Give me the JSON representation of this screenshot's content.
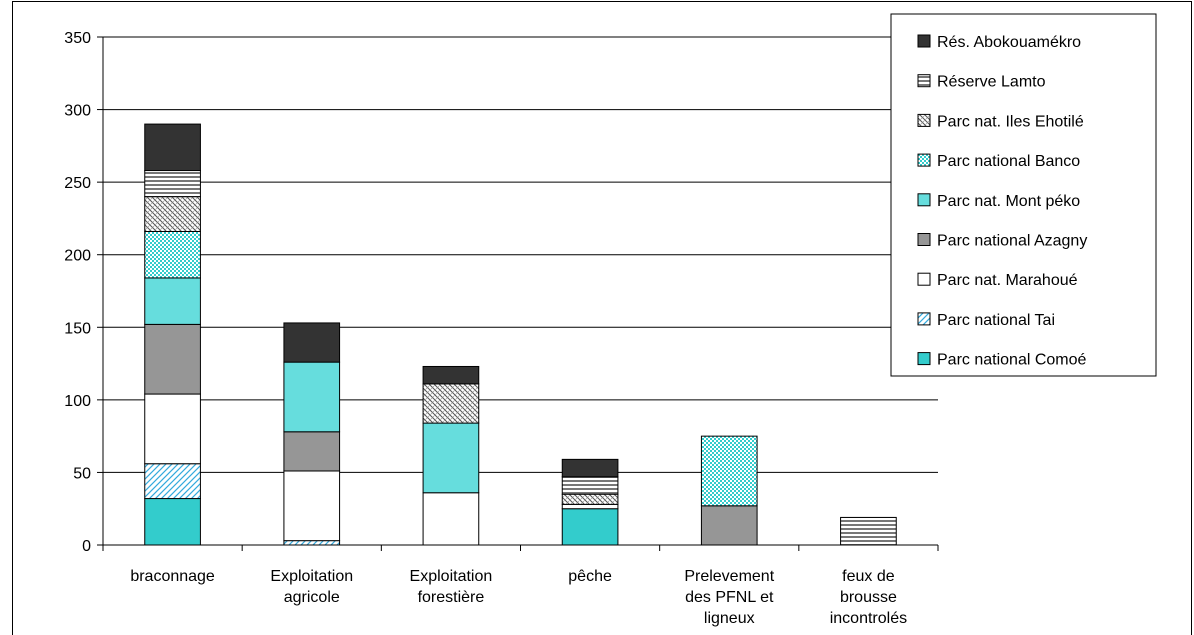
{
  "chart_data": {
    "type": "bar",
    "stacked": true,
    "title": "",
    "xlabel": "",
    "ylabel": "",
    "ylim": [
      0,
      350
    ],
    "yticks": [
      0,
      50,
      100,
      150,
      200,
      250,
      300,
      350
    ],
    "grid": true,
    "legend_position": "top-right",
    "categories": [
      [
        "braconnage"
      ],
      [
        "Exploitation",
        "agricole"
      ],
      [
        "Exploitation",
        "forestière"
      ],
      [
        "pêche"
      ],
      [
        "Prelevement",
        "des PFNL et",
        "ligneux"
      ],
      [
        "feux de",
        "brousse",
        "incontrolés"
      ]
    ],
    "series": [
      {
        "name": "Parc national Comoé",
        "color": "#33CCCC",
        "pattern": "solid",
        "values": [
          32,
          0,
          0,
          25,
          0,
          0
        ]
      },
      {
        "name": "Parc national Tai",
        "color": "#66CCFF",
        "pattern": "diagonal",
        "values": [
          24,
          3,
          0,
          0,
          0,
          0
        ]
      },
      {
        "name": "Parc nat. Marahoué",
        "color": "#FFFFFF",
        "pattern": "solid",
        "values": [
          48,
          48,
          36,
          3,
          0,
          0
        ]
      },
      {
        "name": "Parc national Azagny",
        "color": "#969696",
        "pattern": "solid",
        "values": [
          48,
          27,
          0,
          0,
          27,
          0
        ]
      },
      {
        "name": "Parc nat. Mont péko",
        "color": "#66DDDD",
        "pattern": "solid",
        "values": [
          32,
          48,
          48,
          0,
          0,
          0
        ]
      },
      {
        "name": "Parc national Banco",
        "color": "#33CCCC",
        "pattern": "dots",
        "values": [
          32,
          0,
          0,
          0,
          48,
          0
        ]
      },
      {
        "name": "Parc nat. Iles Ehotilé",
        "color": "#808080",
        "pattern": "crosshatch",
        "values": [
          24,
          0,
          27,
          7,
          0,
          0
        ]
      },
      {
        "name": "Réserve Lamto",
        "color": "#808080",
        "pattern": "horizontal",
        "values": [
          18,
          0,
          0,
          12,
          0,
          19
        ]
      },
      {
        "name": "Rés. Abokouamékro",
        "color": "#333333",
        "pattern": "solid",
        "values": [
          32,
          27,
          12,
          12,
          0,
          0
        ]
      }
    ]
  }
}
